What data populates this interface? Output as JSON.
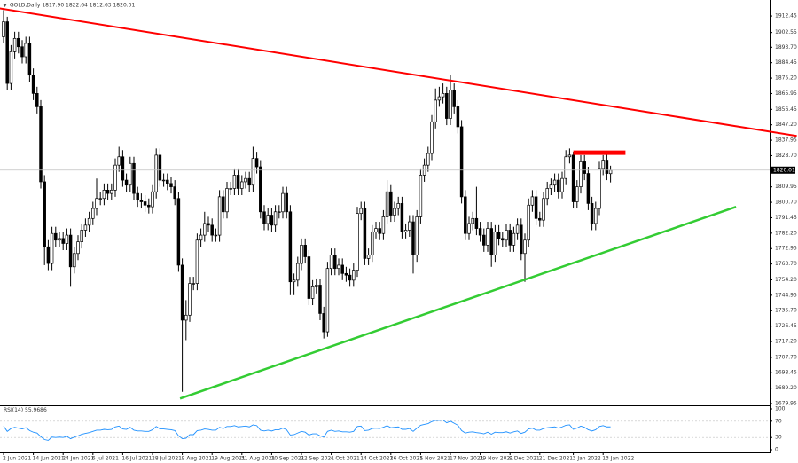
{
  "chart_data": [
    {
      "type": "candlestick",
      "title": "GOLD,Daily 1817.90 1822.64 1812.63 1820.01",
      "categories": [
        "2 Jun 2021",
        null,
        null,
        null,
        null,
        null,
        null,
        null,
        "14 Jun 2021",
        null,
        null,
        null,
        null,
        null,
        null,
        null,
        "24 Jun 2021",
        null,
        null,
        null,
        null,
        null,
        null,
        null,
        "6 Jul 2021",
        null,
        null,
        null,
        null,
        null,
        null,
        null,
        "16 Jul 2021",
        null,
        null,
        null,
        null,
        null,
        null,
        null,
        "28 Jul 2021",
        null,
        null,
        null,
        null,
        null,
        null,
        null,
        "9 Aug 2021",
        null,
        null,
        null,
        null,
        null,
        null,
        null,
        "19 Aug 2021",
        null,
        null,
        null,
        null,
        null,
        null,
        null,
        "31 Aug 2021",
        null,
        null,
        null,
        null,
        null,
        null,
        null,
        "10 Sep 2021",
        null,
        null,
        null,
        null,
        null,
        null,
        null,
        "22 Sep 2021",
        null,
        null,
        null,
        null,
        null,
        null,
        null,
        "4 Oct 2021",
        null,
        null,
        null,
        null,
        null,
        null,
        null,
        "14 Oct 2021",
        null,
        null,
        null,
        null,
        null,
        null,
        null,
        "26 Oct 2021",
        null,
        null,
        null,
        null,
        null,
        null,
        null,
        "5 Nov 2021",
        null,
        null,
        null,
        null,
        null,
        null,
        null,
        "17 Nov 2021",
        null,
        null,
        null,
        null,
        null,
        null,
        null,
        "29 Nov 2021",
        null,
        null,
        null,
        null,
        null,
        null,
        null,
        "9 Dec 2021",
        null,
        null,
        null,
        null,
        null,
        null,
        null,
        "21 Dec 2021",
        null,
        null,
        null,
        null,
        null,
        null,
        null,
        null,
        "3 Jan 2022",
        null,
        null,
        null,
        null,
        null,
        null,
        null,
        "13 Jan 2022",
        null,
        null
      ],
      "open": [
        1900,
        1909,
        1872,
        1891,
        1899,
        1894,
        1888,
        1896,
        1877,
        1866,
        1858,
        1813,
        1774,
        1764,
        1782,
        1778,
        1779,
        1776,
        1781,
        1762,
        1770,
        1777,
        1784,
        1787,
        1791,
        1797,
        1803,
        1803,
        1808,
        1806,
        1808,
        1823,
        1828,
        1814,
        1811,
        1824,
        1806,
        1802,
        1801,
        1799,
        1798,
        1807,
        1829,
        1814,
        1814,
        1812,
        1810,
        1803,
        1763,
        1730,
        1733,
        1752,
        1752,
        1778,
        1781,
        1788,
        1787,
        1781,
        1781,
        1804,
        1795,
        1809,
        1809,
        1817,
        1809,
        1813,
        1815,
        1811,
        1827,
        1822,
        1795,
        1788,
        1793,
        1787,
        1795,
        1795,
        1806,
        1795,
        1753,
        1754,
        1764,
        1775,
        1768,
        1743,
        1750,
        1751,
        1734,
        1723,
        1761,
        1769,
        1761,
        1763,
        1758,
        1757,
        1754,
        1760,
        1794,
        1797,
        1767,
        1769,
        1783,
        1785,
        1782,
        1792,
        1807,
        1793,
        1797,
        1800,
        1783,
        1784,
        1789,
        1769,
        1792,
        1817,
        1823,
        1830,
        1849,
        1862,
        1864,
        1866,
        1851,
        1868,
        1858,
        1846,
        1804,
        1782,
        1788,
        1791,
        1785,
        1781,
        1775,
        1785,
        1769,
        1783,
        1779,
        1778,
        1784,
        1775,
        1782,
        1787,
        1770,
        1778,
        1799,
        1804,
        1791,
        1790,
        1803,
        1809,
        1811,
        1814,
        1807,
        1815,
        1828,
        1829,
        1801,
        1810,
        1825,
        1818,
        1800,
        1788,
        1797,
        1821,
        1826,
        1817.9
      ],
      "high": [
        1916,
        1912,
        1895,
        1903,
        1903,
        1898,
        1900,
        1900,
        1881,
        1870,
        1862,
        1817,
        1778,
        1786,
        1786,
        1783,
        1783,
        1785,
        1785,
        1774,
        1781,
        1788,
        1791,
        1795,
        1801,
        1815,
        1807,
        1812,
        1812,
        1812,
        1827,
        1834,
        1832,
        1818,
        1828,
        1828,
        1810,
        1806,
        1805,
        1803,
        1811,
        1833,
        1833,
        1818,
        1818,
        1816,
        1814,
        1807,
        1767,
        1742,
        1756,
        1756,
        1782,
        1785,
        1795,
        1792,
        1791,
        1785,
        1808,
        1808,
        1813,
        1813,
        1821,
        1821,
        1817,
        1819,
        1819,
        1834,
        1831,
        1826,
        1799,
        1797,
        1797,
        1799,
        1799,
        1810,
        1810,
        1799,
        1758,
        1768,
        1779,
        1779,
        1772,
        1754,
        1755,
        1755,
        1738,
        1765,
        1773,
        1773,
        1767,
        1767,
        1762,
        1761,
        1764,
        1798,
        1801,
        1801,
        1773,
        1787,
        1789,
        1789,
        1796,
        1814,
        1811,
        1801,
        1804,
        1804,
        1788,
        1793,
        1793,
        1796,
        1821,
        1827,
        1834,
        1853,
        1869,
        1870,
        1872,
        1870,
        1877,
        1872,
        1862,
        1850,
        1808,
        1792,
        1795,
        1810,
        1789,
        1785,
        1789,
        1789,
        1787,
        1787,
        1783,
        1788,
        1788,
        1786,
        1791,
        1791,
        1782,
        1803,
        1808,
        1808,
        1795,
        1807,
        1813,
        1815,
        1818,
        1818,
        1819,
        1832,
        1833,
        1831,
        1814,
        1829,
        1829,
        1822,
        1804,
        1801,
        1825,
        1829,
        1830,
        1822.64
      ],
      "low": [
        1896,
        1868,
        1868,
        1887,
        1890,
        1884,
        1884,
        1873,
        1862,
        1854,
        1809,
        1763,
        1760,
        1760,
        1774,
        1774,
        1772,
        1772,
        1750,
        1758,
        1766,
        1773,
        1780,
        1783,
        1787,
        1793,
        1799,
        1799,
        1802,
        1802,
        1804,
        1819,
        1810,
        1807,
        1807,
        1802,
        1798,
        1797,
        1795,
        1794,
        1794,
        1803,
        1810,
        1810,
        1808,
        1806,
        1799,
        1759,
        1687,
        1718,
        1729,
        1748,
        1748,
        1774,
        1777,
        1783,
        1777,
        1777,
        1777,
        1791,
        1791,
        1805,
        1805,
        1805,
        1805,
        1809,
        1807,
        1807,
        1818,
        1791,
        1784,
        1784,
        1783,
        1783,
        1791,
        1791,
        1791,
        1745,
        1745,
        1750,
        1760,
        1764,
        1739,
        1739,
        1746,
        1730,
        1719,
        1720,
        1757,
        1757,
        1757,
        1754,
        1753,
        1750,
        1750,
        1756,
        1790,
        1763,
        1763,
        1765,
        1779,
        1778,
        1778,
        1788,
        1789,
        1789,
        1793,
        1779,
        1779,
        1780,
        1758,
        1765,
        1788,
        1813,
        1819,
        1826,
        1845,
        1858,
        1860,
        1847,
        1847,
        1854,
        1842,
        1800,
        1778,
        1778,
        1784,
        1781,
        1777,
        1771,
        1771,
        1762,
        1765,
        1775,
        1774,
        1774,
        1771,
        1771,
        1778,
        1766,
        1753,
        1774,
        1795,
        1787,
        1786,
        1786,
        1799,
        1805,
        1807,
        1803,
        1803,
        1811,
        1824,
        1797,
        1797,
        1806,
        1814,
        1796,
        1784,
        1784,
        1793,
        1817,
        1814,
        1812.63
      ],
      "close": [
        1909,
        1872,
        1891,
        1899,
        1894,
        1888,
        1896,
        1877,
        1866,
        1858,
        1813,
        1774,
        1764,
        1782,
        1778,
        1779,
        1776,
        1781,
        1762,
        1770,
        1777,
        1784,
        1787,
        1791,
        1797,
        1803,
        1803,
        1808,
        1806,
        1808,
        1823,
        1828,
        1814,
        1811,
        1824,
        1806,
        1802,
        1801,
        1799,
        1798,
        1807,
        1829,
        1814,
        1814,
        1812,
        1810,
        1803,
        1763,
        1730,
        1733,
        1752,
        1752,
        1778,
        1781,
        1788,
        1787,
        1781,
        1781,
        1804,
        1795,
        1809,
        1809,
        1817,
        1809,
        1813,
        1815,
        1811,
        1827,
        1822,
        1795,
        1788,
        1793,
        1787,
        1795,
        1795,
        1806,
        1795,
        1753,
        1754,
        1764,
        1775,
        1768,
        1743,
        1750,
        1751,
        1734,
        1723,
        1761,
        1769,
        1761,
        1763,
        1758,
        1757,
        1754,
        1760,
        1794,
        1797,
        1767,
        1769,
        1783,
        1785,
        1782,
        1792,
        1807,
        1793,
        1797,
        1800,
        1783,
        1784,
        1789,
        1769,
        1792,
        1817,
        1823,
        1830,
        1849,
        1862,
        1864,
        1866,
        1851,
        1868,
        1858,
        1846,
        1804,
        1782,
        1788,
        1791,
        1785,
        1781,
        1775,
        1785,
        1769,
        1783,
        1779,
        1778,
        1784,
        1775,
        1782,
        1787,
        1770,
        1778,
        1799,
        1804,
        1791,
        1790,
        1803,
        1809,
        1811,
        1814,
        1807,
        1815,
        1828,
        1829,
        1801,
        1810,
        1825,
        1818,
        1800,
        1788,
        1797,
        1821,
        1826,
        1818,
        1820.01
      ],
      "color_up": "#ffffff",
      "color_down": "#000000",
      "ylim": [
        1679.95,
        1919.4
      ],
      "yticks": [
        1912.45,
        {
          "value": 1902.55,
          "label": "1902.55"
        },
        {
          "value": 1893.7,
          "label": "1893.70"
        },
        1884.45,
        {
          "value": 1875.2,
          "label": "1875.20"
        },
        1865.95,
        1856.45,
        {
          "value": 1847.2,
          "label": "1847.20"
        },
        1837.95,
        {
          "value": 1828.7,
          "label": "1828.70"
        },
        1809.95,
        {
          "value": 1800.7,
          "label": "1800.70"
        },
        1791.45,
        {
          "value": 1782.2,
          "label": "1782.20"
        },
        1772.95,
        {
          "value": 1763.7,
          "label": "1763.70"
        },
        {
          "value": 1754.2,
          "label": "1754.20"
        },
        1744.95,
        {
          "value": 1735.7,
          "label": "1735.70"
        },
        1726.45,
        {
          "value": 1717.2,
          "label": "1717.20"
        },
        {
          "value": 1707.7,
          "label": "1707.70"
        },
        1698.45,
        {
          "value": 1689.2,
          "label": "1689.20"
        },
        1679.95
      ],
      "lines": [
        {
          "color": "#ff0000",
          "from": [
            -1,
            1917
          ],
          "to": [
            213,
            1840.5
          ]
        },
        {
          "color": "#33cc33",
          "from": [
            47.4,
            1683
          ],
          "to": [
            196.7,
            1798
          ]
        },
        {
          "color": "#ff0000",
          "from": [
            153,
            1830.5
          ],
          "to": [
            167,
            1830.5
          ]
        }
      ]
    },
    {
      "type": "line",
      "name": "RSI(14)",
      "color": "#1e90ff",
      "values": [
        58,
        45,
        52,
        55,
        53,
        51,
        54,
        47,
        43,
        41,
        32,
        25,
        23,
        31,
        30,
        31,
        30,
        33,
        27,
        31,
        34,
        38,
        40,
        42,
        45,
        48,
        48,
        50,
        49,
        50,
        56,
        58,
        51,
        50,
        55,
        48,
        46,
        46,
        45,
        45,
        49,
        57,
        51,
        51,
        50,
        49,
        47,
        34,
        27,
        28,
        37,
        37,
        47,
        48,
        51,
        50,
        48,
        48,
        55,
        52,
        57,
        57,
        59,
        56,
        57,
        58,
        56,
        61,
        59,
        48,
        46,
        48,
        46,
        49,
        49,
        53,
        49,
        36,
        37,
        41,
        45,
        43,
        36,
        39,
        39,
        34,
        31,
        45,
        48,
        45,
        46,
        44,
        44,
        43,
        45,
        57,
        58,
        47,
        48,
        52,
        53,
        52,
        55,
        59,
        54,
        55,
        56,
        50,
        50,
        52,
        45,
        53,
        60,
        62,
        64,
        69,
        72,
        72,
        73,
        66,
        70,
        65,
        60,
        47,
        41,
        43,
        44,
        42,
        41,
        39,
        43,
        38,
        43,
        42,
        42,
        44,
        41,
        44,
        46,
        40,
        43,
        51,
        53,
        48,
        48,
        52,
        54,
        55,
        56,
        53,
        56,
        60,
        61,
        50,
        53,
        58,
        55,
        49,
        46,
        49,
        57,
        59,
        56,
        55.9686
      ],
      "ylim": [
        -6.5,
        108.7
      ],
      "yticks": [
        100,
        70,
        30,
        0
      ],
      "levels": [
        70,
        30
      ]
    }
  ]
}
